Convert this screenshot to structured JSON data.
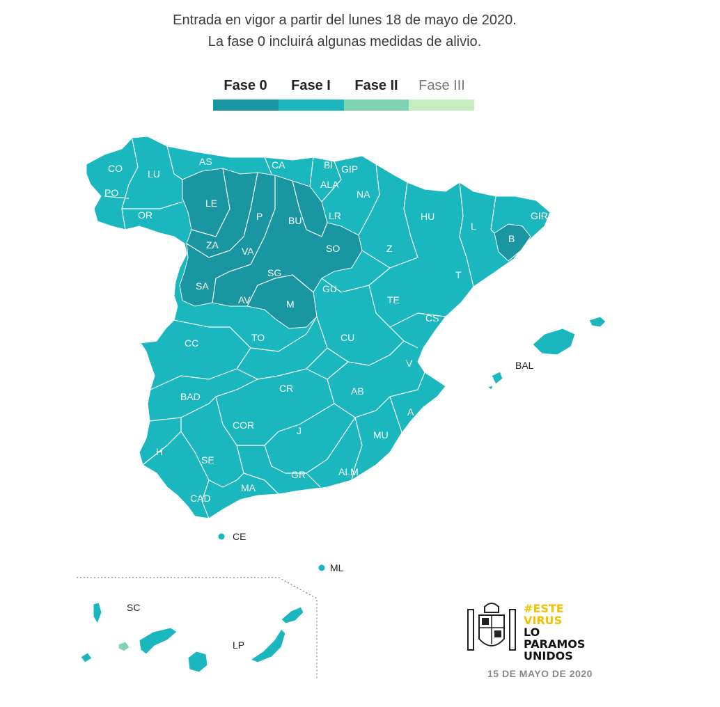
{
  "header": {
    "line1": "Entrada en vigor a partir del lunes 18 de mayo de 2020.",
    "line2": "La fase 0 incluirá algunas medidas de alivio."
  },
  "legend": [
    {
      "label": "Fase 0",
      "color": "#1a96a2"
    },
    {
      "label": "Fase I",
      "color": "#1ab8be"
    },
    {
      "label": "Fase II",
      "color": "#7fd3b2"
    },
    {
      "label": "Fase III",
      "color": "#c6ecbf"
    }
  ],
  "colors": {
    "fase0": "#1a96a2",
    "fase1": "#1ab8be",
    "fase2": "#7fd3b2",
    "border": "#ffffff"
  },
  "provinces": {
    "CO": "CO",
    "LU": "LU",
    "AS": "AS",
    "CA": "CA",
    "BI": "BI",
    "GIP": "GIP",
    "PO": "PO",
    "ALA": "ALA",
    "NA": "NA",
    "LE": "LE",
    "OR": "OR",
    "P": "P",
    "BU": "BU",
    "LR": "LR",
    "HU": "HU",
    "L": "L",
    "GIR": "GIR",
    "B": "B",
    "ZA": "ZA",
    "VA": "VA",
    "SO": "SO",
    "Z": "Z",
    "SG": "SG",
    "SA": "SA",
    "GU": "GU",
    "T": "T",
    "AV": "AV",
    "M": "M",
    "TE": "TE",
    "CS": "CS",
    "CC": "CC",
    "TO": "TO",
    "CU": "CU",
    "V": "V",
    "BAL": "BAL",
    "BAD": "BAD",
    "CR": "CR",
    "AB": "AB",
    "A": "A",
    "COR": "COR",
    "J": "J",
    "MU": "MU",
    "H": "H",
    "SE": "SE",
    "GR": "GR",
    "ALM": "ALM",
    "MA": "MA",
    "CAD": "CAD",
    "CE": "CE",
    "ML": "ML",
    "SC": "SC",
    "LP": "LP"
  },
  "logo": {
    "line1": "#ESTE",
    "line2": "VIRUS",
    "line3": "LO",
    "line4": "PARAMOS",
    "line5": "UNIDOS",
    "icon": "spain-coat-of-arms-icon"
  },
  "date": "15 DE MAYO DE 2020"
}
